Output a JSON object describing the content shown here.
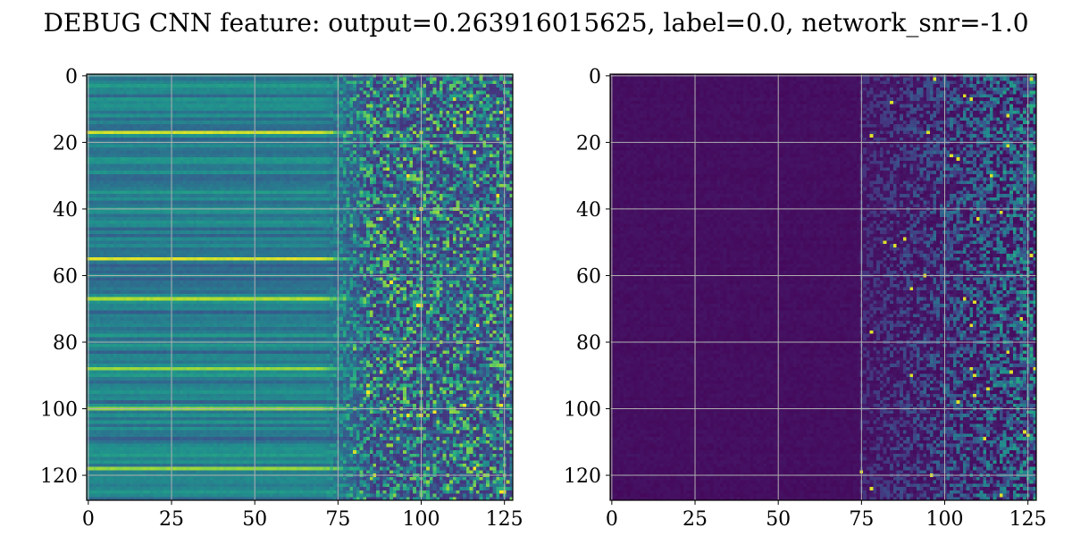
{
  "figure": {
    "title": "DEBUG CNN feature: output=0.263916015625, label=0.0, network_snr=-1.0"
  },
  "chart_data": [
    {
      "type": "heatmap",
      "title": "",
      "xlabel": "",
      "ylabel": "",
      "rows": 128,
      "cols": 128,
      "xlim": [
        0,
        127
      ],
      "ylim": [
        127,
        0
      ],
      "x_ticks": [
        0,
        25,
        50,
        75,
        100,
        125
      ],
      "y_ticks": [
        0,
        20,
        40,
        60,
        80,
        100,
        120
      ],
      "grid": true,
      "colormap": "viridis",
      "description_of_pattern": {
        "left_columns_0_75": "horizontal bands, values vary by row, mostly mid-range teal/blue",
        "right_columns_75_127": "noisy speckle with scattered bright yellow/green pixels",
        "bright_rows": [
          17,
          55,
          67,
          88,
          100,
          118
        ]
      }
    },
    {
      "type": "heatmap",
      "title": "",
      "xlabel": "",
      "ylabel": "",
      "rows": 128,
      "cols": 128,
      "xlim": [
        0,
        127
      ],
      "ylim": [
        127,
        0
      ],
      "x_ticks": [
        0,
        25,
        50,
        75,
        100,
        125
      ],
      "y_ticks": [
        0,
        20,
        40,
        60,
        80,
        100,
        120
      ],
      "grid": true,
      "colormap": "viridis",
      "description_of_pattern": {
        "left_columns_0_75": "near-zero, dark purple",
        "right_columns_75_127": "sparse activations increasing to the right, teal/green with rare yellow pixels"
      }
    }
  ],
  "colors": {
    "grid": "#b0b0b0",
    "viridis_low": "#440154",
    "viridis_high": "#fde725"
  }
}
